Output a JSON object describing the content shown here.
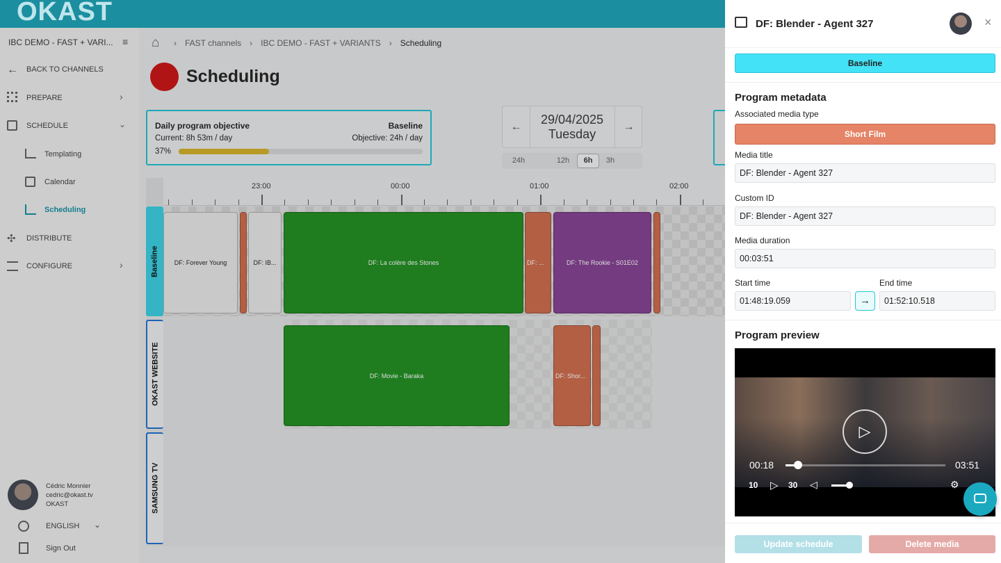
{
  "header": {
    "logo": "OKAST"
  },
  "sidebar": {
    "workspace": "IBC DEMO - FAST + VARI...",
    "nav": [
      "BACK TO CHANNELS",
      "PREPARE",
      "SCHEDULE",
      "Templating",
      "Calendar",
      "Scheduling",
      "DISTRIBUTE",
      "CONFIGURE"
    ],
    "user": {
      "name": "Cédric Monnier",
      "email": "cedric@okast.tv",
      "org": "OKAST"
    },
    "language": "ENGLISH",
    "sign_out": "Sign Out"
  },
  "breadcrumb": [
    "FAST channels",
    "IBC DEMO - FAST + VARIANTS",
    "Scheduling"
  ],
  "page_title": "Scheduling",
  "objective": {
    "title": "Daily program objective",
    "variant": "Baseline",
    "current": "Current: 8h 53m / day",
    "target": "Objective: 24h / day",
    "percent_label": "37%",
    "percent": 37
  },
  "date_nav": {
    "date": "29/04/2025",
    "weekday": "Tuesday",
    "zooms": [
      "24h",
      "12h",
      "6h",
      "3h"
    ]
  },
  "timeline": {
    "times": [
      "23:00",
      "00:00",
      "01:00",
      "02:00"
    ],
    "channels": [
      {
        "name": "Baseline",
        "programs": [
          "DF: Forever Young",
          "DF: IB...",
          "DF: La colère des Stones",
          "DF: ...",
          "DF: The Rookie - S01E02"
        ]
      },
      {
        "name": "OKAST WEBSITE",
        "programs": [
          "DF: Movie - Baraka",
          "DF: Shor..."
        ]
      },
      {
        "name": "SAMSUNG TV",
        "programs": []
      }
    ]
  },
  "panel": {
    "title": "DF: Blender - Agent 327",
    "variant": "Baseline",
    "metadata_title": "Program metadata",
    "media_type_label": "Associated media type",
    "media_type": "Short Film",
    "fields": [
      {
        "label": "Media title",
        "value": "DF: Blender - Agent 327"
      },
      {
        "label": "Custom ID",
        "value": "DF: Blender - Agent 327"
      },
      {
        "label": "Media duration",
        "value": "00:03:51"
      }
    ],
    "start_time": {
      "label": "Start time",
      "value": "01:48:19.059"
    },
    "end_time": {
      "label": "End time",
      "value": "01:52:10.518"
    },
    "preview_title": "Program preview",
    "player": {
      "current": "00:18",
      "duration": "03:51",
      "skip_back": "10",
      "skip_forward": "30"
    },
    "update_button": "Update schedule",
    "delete_button": "Delete media"
  }
}
